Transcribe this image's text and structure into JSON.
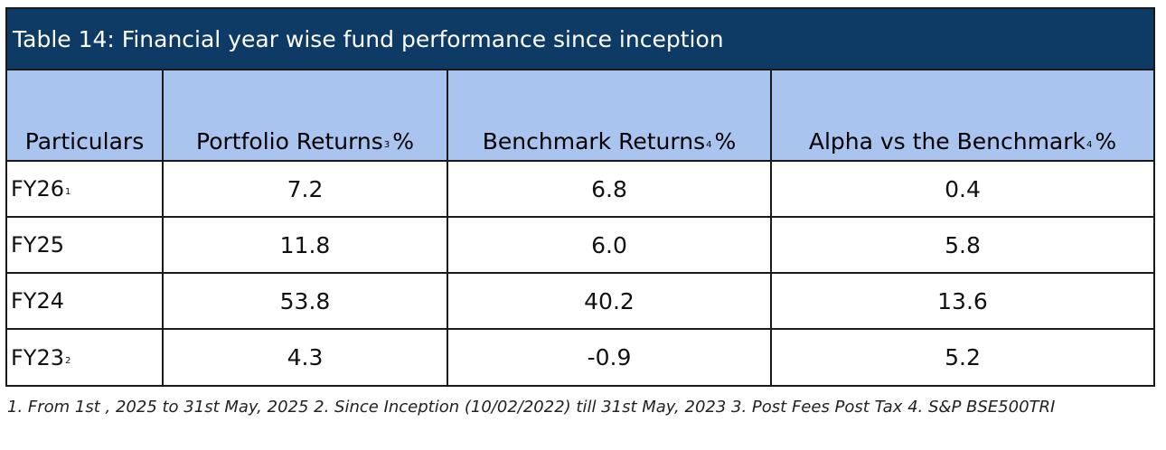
{
  "title": "Table 14: Financial year wise fund performance since inception",
  "headers": [
    {
      "text": "Particulars",
      "sup": ""
    },
    {
      "text": "Portfolio Returns",
      "sup": "3",
      "suffix": "%"
    },
    {
      "text": "Benchmark Returns",
      "sup": "4",
      "suffix": "%"
    },
    {
      "text": "Alpha vs the Benchmark",
      "sup": "4",
      "suffix": "%"
    }
  ],
  "rows": [
    {
      "label": "FY26",
      "sup": "1",
      "portfolio": "7.2",
      "benchmark": "6.8",
      "alpha": "0.4"
    },
    {
      "label": "FY25",
      "sup": "",
      "portfolio": "11.8",
      "benchmark": "6.0",
      "alpha": "5.8"
    },
    {
      "label": "FY24",
      "sup": "",
      "portfolio": "53.8",
      "benchmark": "40.2",
      "alpha": "13.6"
    },
    {
      "label": "FY23",
      "sup": "2",
      "portfolio": "4.3",
      "benchmark": "-0.9",
      "alpha": "5.2"
    }
  ],
  "footnote": "1. From 1st , 2025 to 31st May, 2025  2. Since Inception (10/02/2022) till 31st May, 2023  3.  Post Fees Post Tax  4. S&P BSE500TRI",
  "colors": {
    "title_bg": "#0e3a66",
    "header_bg": "#a9c4ef",
    "border": "#1a1a1a"
  }
}
